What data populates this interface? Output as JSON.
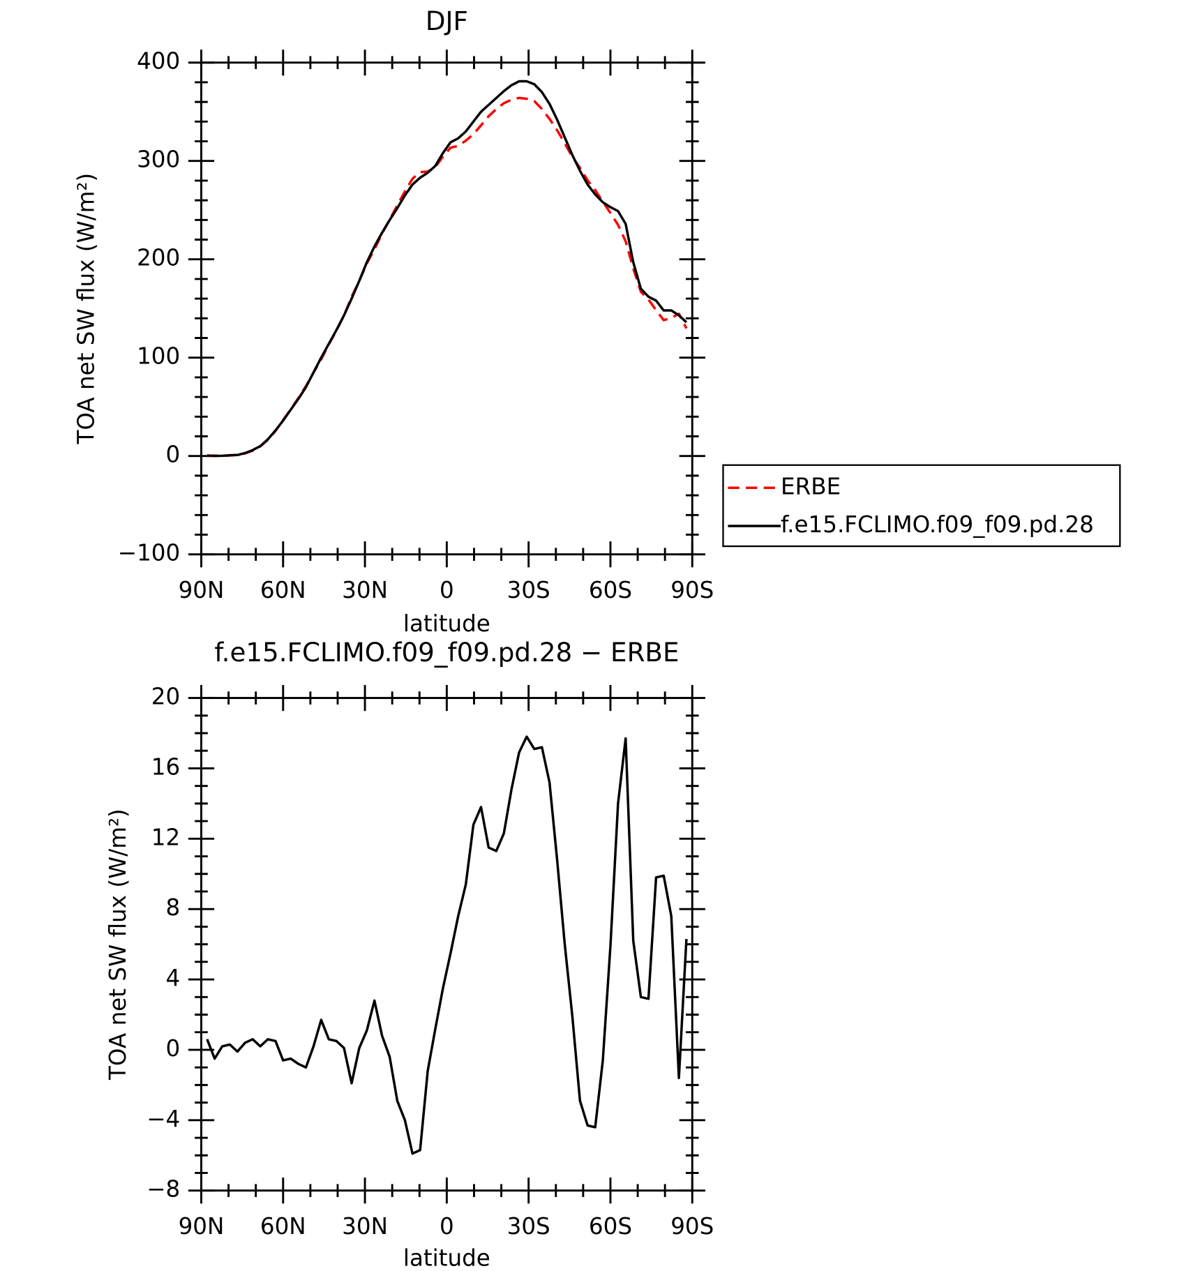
{
  "chart_data": [
    {
      "type": "line",
      "title": "DJF",
      "xlabel": "latitude",
      "ylabel": "TOA net SW flux (W/m²)",
      "x": [
        87.86,
        85.1,
        82.31,
        79.53,
        76.74,
        73.95,
        71.16,
        68.37,
        65.58,
        62.79,
        60.0,
        57.21,
        54.42,
        51.63,
        48.84,
        46.04,
        43.25,
        40.46,
        37.67,
        34.88,
        32.09,
        29.3,
        26.51,
        23.72,
        20.93,
        18.14,
        15.35,
        12.56,
        9.77,
        6.98,
        4.19,
        1.4,
        -1.4,
        -4.19,
        -6.98,
        -9.77,
        -12.56,
        -15.35,
        -18.14,
        -20.93,
        -23.72,
        -26.51,
        -29.3,
        -32.09,
        -34.88,
        -37.67,
        -40.46,
        -43.25,
        -46.04,
        -48.84,
        -51.63,
        -54.42,
        -57.21,
        -60.0,
        -62.79,
        -65.58,
        -68.37,
        -71.16,
        -73.95,
        -76.74,
        -79.53,
        -82.31,
        -85.1,
        -87.86
      ],
      "series": [
        {
          "name": "ERBE",
          "color": "#ff0000",
          "dash": true,
          "values": [
            0,
            0.5,
            0,
            0.5,
            1.1,
            2.6,
            5.4,
            9.8,
            16.4,
            25.5,
            36.6,
            47.5,
            58.8,
            71,
            84.8,
            98.3,
            113.4,
            127.5,
            142.9,
            161.9,
            177.9,
            195.9,
            210.2,
            226.2,
            240.4,
            254.9,
            269,
            281.9,
            288.7,
            289.2,
            293.8,
            304.5,
            313.5,
            315.4,
            320.6,
            327.2,
            336.2,
            345.5,
            352.7,
            358.7,
            362.2,
            364.1,
            363.2,
            360.9,
            352.8,
            342.8,
            331.2,
            318,
            304.1,
            292.9,
            280.3,
            270.4,
            258.6,
            247.1,
            235,
            218.3,
            190.8,
            167,
            159.1,
            148.2,
            138.1,
            140.4,
            144.6,
            129.7
          ]
        },
        {
          "name": "f.e15.FCLIMO.f09_f09.pd.28",
          "color": "#000000",
          "dash": false,
          "values": [
            0.6,
            0,
            0.2,
            0.8,
            1,
            3,
            6,
            10,
            17,
            26,
            36,
            47,
            58,
            70,
            85,
            100,
            114,
            128,
            143,
            160,
            178,
            197,
            213,
            227,
            240,
            252,
            265,
            276,
            283,
            288,
            295,
            308,
            319,
            323,
            330,
            340,
            350,
            357,
            364,
            371,
            377,
            381,
            381,
            378,
            370,
            358,
            342,
            324,
            306,
            290,
            276,
            266,
            258,
            253,
            249,
            236,
            197,
            170,
            162,
            158,
            148,
            148,
            143,
            136
          ]
        }
      ],
      "xlim": [
        90,
        -90
      ],
      "xticks": [
        {
          "value": 90,
          "label": "90N"
        },
        {
          "value": 60,
          "label": "60N"
        },
        {
          "value": 30,
          "label": "30N"
        },
        0,
        {
          "value": -30,
          "label": "30S"
        },
        {
          "value": -60,
          "label": "60S"
        },
        {
          "value": -90,
          "label": "90S"
        }
      ],
      "ylim": [
        -100,
        400
      ],
      "yticks": [
        {
          "value": -100,
          "label": "−100"
        },
        0,
        100,
        200,
        300,
        400
      ],
      "legend": "outside-right"
    },
    {
      "type": "line",
      "title": "f.e15.FCLIMO.f09_f09.pd.28 − ERBE",
      "xlabel": "latitude",
      "ylabel": "TOA net SW flux (W/m²)",
      "x": [
        87.86,
        85.1,
        82.31,
        79.53,
        76.74,
        73.95,
        71.16,
        68.37,
        65.58,
        62.79,
        60.0,
        57.21,
        54.42,
        51.63,
        48.84,
        46.04,
        43.25,
        40.46,
        37.67,
        34.88,
        32.09,
        29.3,
        26.51,
        23.72,
        20.93,
        18.14,
        15.35,
        12.56,
        9.77,
        6.98,
        4.19,
        1.4,
        -1.4,
        -4.19,
        -6.98,
        -9.77,
        -12.56,
        -15.35,
        -18.14,
        -20.93,
        -23.72,
        -26.51,
        -29.3,
        -32.09,
        -34.88,
        -37.67,
        -40.46,
        -43.25,
        -46.04,
        -48.84,
        -51.63,
        -54.42,
        -57.21,
        -60.0,
        -62.79,
        -65.58,
        -68.37,
        -71.16,
        -73.95,
        -76.74,
        -79.53,
        -82.31,
        -85.1,
        -87.86
      ],
      "series": [
        {
          "color": "#000000",
          "dash": false,
          "values": [
            0.6,
            -0.5,
            0.2,
            0.3,
            -0.1,
            0.4,
            0.6,
            0.2,
            0.6,
            0.5,
            -0.6,
            -0.5,
            -0.8,
            -1.0,
            0.2,
            1.7,
            0.6,
            0.5,
            0.1,
            -1.9,
            0.1,
            1.1,
            2.8,
            0.8,
            -0.4,
            -2.9,
            -4.0,
            -5.9,
            -5.7,
            -1.2,
            1.2,
            3.5,
            5.5,
            7.6,
            9.4,
            12.8,
            13.8,
            11.5,
            11.3,
            12.3,
            14.8,
            16.9,
            17.8,
            17.1,
            17.2,
            15.2,
            10.8,
            6.0,
            1.9,
            -2.9,
            -4.3,
            -4.4,
            -0.6,
            5.9,
            14.0,
            17.7,
            6.2,
            3.0,
            2.9,
            9.8,
            9.9,
            7.6,
            -1.6,
            6.3
          ]
        }
      ],
      "xlim": [
        90,
        -90
      ],
      "xticks": [
        {
          "value": 90,
          "label": "90N"
        },
        {
          "value": 60,
          "label": "60N"
        },
        {
          "value": 30,
          "label": "30N"
        },
        0,
        {
          "value": -30,
          "label": "30S"
        },
        {
          "value": -60,
          "label": "60S"
        },
        {
          "value": -90,
          "label": "90S"
        }
      ],
      "ylim": [
        -8,
        20
      ],
      "yticks": [
        {
          "value": -8,
          "label": "−8"
        },
        {
          "value": -4,
          "label": "−4"
        },
        0,
        4,
        8,
        12,
        16,
        20
      ]
    }
  ]
}
